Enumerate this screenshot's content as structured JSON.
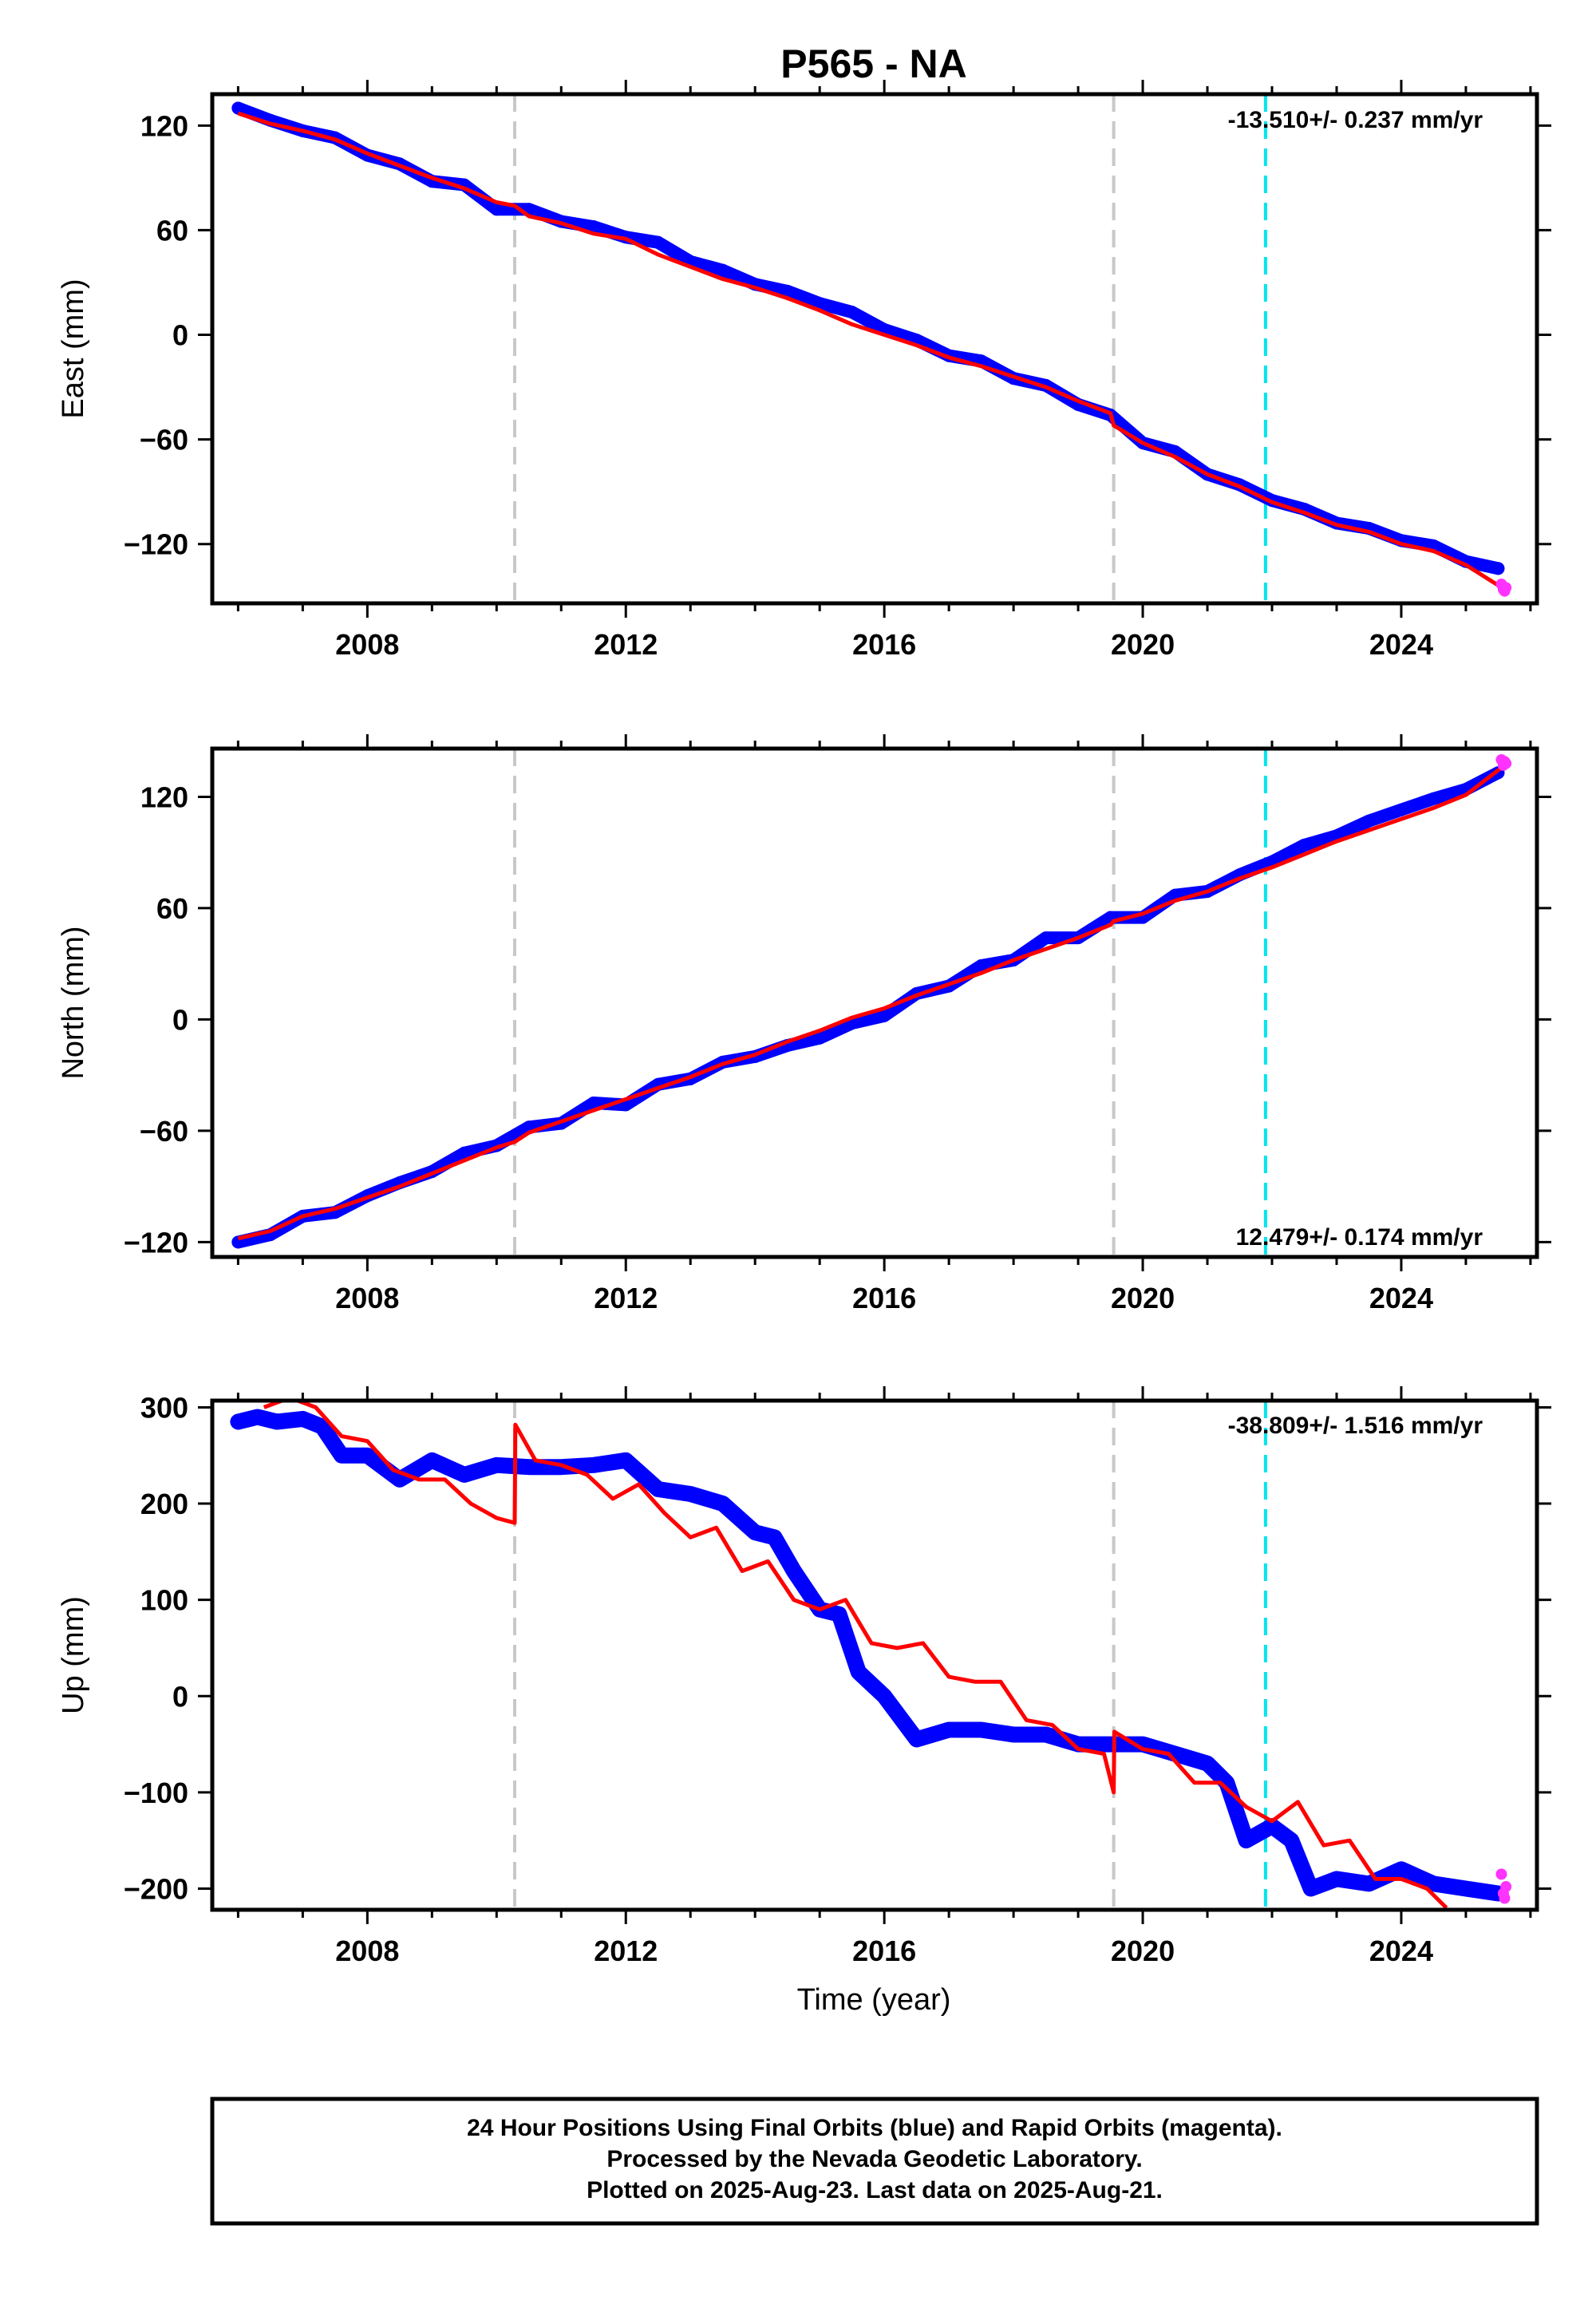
{
  "title": "P565 - NA",
  "xlabel": "Time (year)",
  "footer": {
    "lines": [
      "24 Hour Positions Using Final Orbits (blue) and Rapid Orbits (magenta).",
      "Processed by the Nevada Geodetic Laboratory.",
      "Plotted on 2025-Aug-23. Last data on 2025-Aug-21."
    ]
  },
  "colors": {
    "final_orbits": "#0000ff",
    "rapid_orbits": "#ff33ff",
    "model_fit": "#ff0000",
    "equipment_change": "#c8c8c8",
    "earthquake_event": "#00e5ee",
    "frame": "#000000"
  },
  "chart_data": [
    {
      "type": "scatter",
      "panel": "east",
      "ylabel": "East (mm)",
      "rate_text": "-13.510+/- 0.237 mm/yr",
      "xlim": [
        2005.6,
        2026.1
      ],
      "ylim": [
        -154,
        138
      ],
      "x_ticks": [
        2008,
        2012,
        2016,
        2020,
        2024
      ],
      "y_ticks": [
        120,
        60,
        0,
        -60,
        -120
      ],
      "y_tick_labels": [
        "120",
        "60",
        "0",
        "−60",
        "−120"
      ],
      "equipment_change_years": [
        2010.28,
        2019.55
      ],
      "earthquake_years": [
        2021.9
      ],
      "series": [
        {
          "role": "final_orbits",
          "x": [
            2006.0,
            2006.5,
            2007.0,
            2007.5,
            2008.0,
            2008.5,
            2009.0,
            2009.5,
            2010.0,
            2010.5,
            2011.0,
            2011.5,
            2012.0,
            2012.5,
            2013.0,
            2013.5,
            2014.0,
            2014.5,
            2015.0,
            2015.5,
            2016.0,
            2016.5,
            2017.0,
            2017.5,
            2018.0,
            2018.5,
            2019.0,
            2019.5,
            2020.0,
            2020.5,
            2021.0,
            2021.5,
            2022.0,
            2022.5,
            2023.0,
            2023.5,
            2024.0,
            2024.5,
            2025.0,
            2025.5
          ],
          "y": [
            130,
            123,
            117,
            113,
            103,
            98,
            88,
            86,
            72,
            72,
            65,
            62,
            56,
            53,
            42,
            37,
            29,
            25,
            18,
            13,
            3,
            -3,
            -12,
            -15,
            -25,
            -29,
            -40,
            -46,
            -62,
            -67,
            -80,
            -86,
            -95,
            -100,
            -108,
            -111,
            -118,
            -121,
            -130,
            -134
          ]
        },
        {
          "role": "rapid_orbits",
          "x": [
            2025.55,
            2025.58,
            2025.6,
            2025.62
          ],
          "y": [
            -143,
            -146,
            -147,
            -145
          ]
        },
        {
          "role": "model_fit",
          "x": [
            2006.0,
            2006.5,
            2007.0,
            2007.5,
            2008.0,
            2008.5,
            2009.0,
            2009.5,
            2010.0,
            2010.28,
            2010.5,
            2011.0,
            2011.5,
            2012.0,
            2012.5,
            2013.0,
            2013.5,
            2014.0,
            2014.5,
            2015.0,
            2015.5,
            2016.0,
            2016.5,
            2017.0,
            2017.5,
            2018.0,
            2018.5,
            2019.0,
            2019.5,
            2019.55,
            2020.0,
            2020.5,
            2021.0,
            2021.5,
            2022.0,
            2022.5,
            2023.0,
            2023.5,
            2024.0,
            2024.5,
            2025.0,
            2025.6
          ],
          "y": [
            127,
            121,
            117,
            112,
            104,
            97,
            90,
            84,
            76,
            74,
            68,
            64,
            58,
            55,
            46,
            39,
            32,
            27,
            21,
            14,
            6,
            0,
            -6,
            -13,
            -18,
            -24,
            -30,
            -38,
            -45,
            -52,
            -62,
            -70,
            -80,
            -87,
            -96,
            -102,
            -109,
            -113,
            -120,
            -124,
            -132,
            -146
          ]
        }
      ]
    },
    {
      "type": "scatter",
      "panel": "north",
      "ylabel": "North (mm)",
      "rate_text": "12.479+/- 0.174 mm/yr",
      "xlim": [
        2005.6,
        2026.1
      ],
      "ylim": [
        -128,
        146
      ],
      "x_ticks": [
        2008,
        2012,
        2016,
        2020,
        2024
      ],
      "y_ticks": [
        120,
        60,
        0,
        -60,
        -120
      ],
      "y_tick_labels": [
        "120",
        "60",
        "0",
        "−60",
        "−120"
      ],
      "equipment_change_years": [
        2010.28,
        2019.55
      ],
      "earthquake_years": [
        2021.9
      ],
      "series": [
        {
          "role": "final_orbits",
          "x": [
            2006.0,
            2006.5,
            2007.0,
            2007.5,
            2008.0,
            2008.5,
            2009.0,
            2009.5,
            2010.0,
            2010.5,
            2011.0,
            2011.5,
            2012.0,
            2012.5,
            2013.0,
            2013.5,
            2014.0,
            2014.5,
            2015.0,
            2015.5,
            2016.0,
            2016.5,
            2017.0,
            2017.5,
            2018.0,
            2018.5,
            2019.0,
            2019.5,
            2020.0,
            2020.5,
            2021.0,
            2021.5,
            2022.0,
            2022.5,
            2023.0,
            2023.5,
            2024.0,
            2024.5,
            2025.0,
            2025.5
          ],
          "y": [
            -120,
            -116,
            -106,
            -104,
            -95,
            -88,
            -82,
            -72,
            -68,
            -58,
            -56,
            -45,
            -46,
            -35,
            -32,
            -23,
            -20,
            -14,
            -10,
            -2,
            2,
            14,
            18,
            29,
            32,
            44,
            44,
            55,
            55,
            67,
            69,
            78,
            85,
            94,
            99,
            107,
            113,
            119,
            124,
            133
          ]
        },
        {
          "role": "rapid_orbits",
          "x": [
            2025.55,
            2025.58,
            2025.6,
            2025.62
          ],
          "y": [
            140,
            137,
            139,
            138
          ]
        },
        {
          "role": "model_fit",
          "x": [
            2006.0,
            2006.5,
            2007.0,
            2007.5,
            2008.0,
            2008.5,
            2009.0,
            2009.5,
            2010.0,
            2010.28,
            2010.5,
            2011.0,
            2011.5,
            2012.0,
            2012.5,
            2013.0,
            2013.5,
            2014.0,
            2014.5,
            2015.0,
            2015.5,
            2016.0,
            2016.5,
            2017.0,
            2017.5,
            2018.0,
            2018.5,
            2019.0,
            2019.5,
            2019.55,
            2020.0,
            2020.5,
            2021.0,
            2021.5,
            2022.0,
            2022.5,
            2023.0,
            2023.5,
            2024.0,
            2024.5,
            2025.0,
            2025.6
          ],
          "y": [
            -118,
            -114,
            -106,
            -102,
            -96,
            -90,
            -83,
            -76,
            -69,
            -66,
            -61,
            -55,
            -49,
            -43,
            -37,
            -31,
            -24,
            -19,
            -12,
            -6,
            1,
            6,
            13,
            19,
            25,
            32,
            38,
            44,
            51,
            53,
            57,
            64,
            69,
            76,
            82,
            89,
            96,
            102,
            108,
            114,
            121,
            137
          ]
        }
      ]
    },
    {
      "type": "scatter",
      "panel": "up",
      "ylabel": "Up (mm)",
      "rate_text": "-38.809+/- 1.516 mm/yr",
      "xlim": [
        2005.6,
        2026.1
      ],
      "ylim": [
        -222,
        307
      ],
      "x_ticks": [
        2008,
        2012,
        2016,
        2020,
        2024
      ],
      "x_tick_labels": [
        "2008",
        "2012",
        "2016",
        "2020",
        "2024"
      ],
      "y_ticks": [
        300,
        200,
        100,
        0,
        -100,
        -200
      ],
      "y_tick_labels": [
        "300",
        "200",
        "100",
        "0",
        "−100",
        "−200"
      ],
      "equipment_change_years": [
        2010.28,
        2019.55
      ],
      "earthquake_years": [
        2021.9
      ],
      "series": [
        {
          "role": "final_orbits",
          "x": [
            2006.0,
            2006.3,
            2006.6,
            2007.0,
            2007.3,
            2007.6,
            2008.0,
            2008.5,
            2009.0,
            2009.5,
            2010.0,
            2010.5,
            2011.0,
            2011.5,
            2012.0,
            2012.5,
            2013.0,
            2013.5,
            2014.0,
            2014.3,
            2014.6,
            2015.0,
            2015.3,
            2015.6,
            2016.0,
            2016.5,
            2017.0,
            2017.5,
            2018.0,
            2018.5,
            2019.0,
            2019.5,
            2020.0,
            2020.5,
            2021.0,
            2021.3,
            2021.6,
            2022.0,
            2022.3,
            2022.6,
            2023.0,
            2023.5,
            2024.0,
            2024.5,
            2025.0,
            2025.5
          ],
          "y": [
            285,
            290,
            285,
            288,
            280,
            250,
            250,
            225,
            245,
            230,
            240,
            238,
            238,
            240,
            245,
            215,
            210,
            200,
            170,
            165,
            130,
            90,
            85,
            25,
            0,
            -45,
            -35,
            -35,
            -40,
            -40,
            -50,
            -50,
            -50,
            -60,
            -70,
            -90,
            -150,
            -135,
            -150,
            -200,
            -190,
            -195,
            -180,
            -195,
            -200,
            -205
          ]
        },
        {
          "role": "rapid_orbits",
          "x": [
            2025.55,
            2025.58,
            2025.6,
            2025.62
          ],
          "y": [
            -185,
            -205,
            -210,
            -198
          ]
        },
        {
          "role": "model_fit",
          "x": [
            2006.4,
            2006.8,
            2007.2,
            2007.6,
            2008.0,
            2008.4,
            2008.8,
            2009.2,
            2009.6,
            2010.0,
            2010.28,
            2010.29,
            2010.6,
            2011.0,
            2011.4,
            2011.8,
            2012.2,
            2012.6,
            2013.0,
            2013.4,
            2013.8,
            2014.2,
            2014.6,
            2015.0,
            2015.4,
            2015.8,
            2016.2,
            2016.6,
            2017.0,
            2017.4,
            2017.8,
            2018.2,
            2018.6,
            2019.0,
            2019.4,
            2019.55,
            2019.56,
            2020.0,
            2020.4,
            2020.8,
            2021.2,
            2021.6,
            2022.0,
            2022.4,
            2022.8,
            2023.2,
            2023.6,
            2024.0,
            2024.4,
            2024.7
          ],
          "y": [
            300,
            310,
            300,
            270,
            265,
            235,
            225,
            225,
            200,
            185,
            180,
            282,
            245,
            240,
            230,
            205,
            220,
            190,
            165,
            175,
            130,
            140,
            100,
            90,
            100,
            55,
            50,
            55,
            20,
            15,
            15,
            -25,
            -30,
            -55,
            -60,
            -100,
            -37,
            -55,
            -60,
            -90,
            -90,
            -115,
            -130,
            -110,
            -155,
            -150,
            -190,
            -190,
            -200,
            -220
          ]
        }
      ]
    }
  ]
}
